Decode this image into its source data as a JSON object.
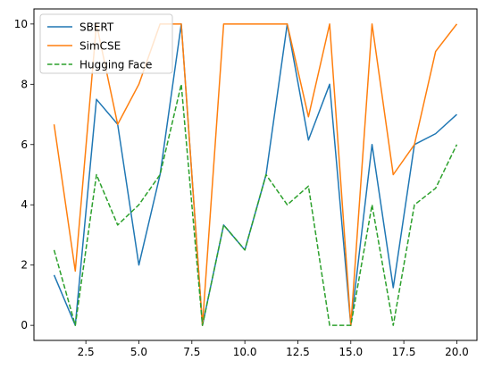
{
  "chart_data": {
    "type": "line",
    "x": [
      1,
      2,
      3,
      4,
      5,
      6,
      7,
      8,
      9,
      10,
      11,
      12,
      13,
      14,
      15,
      16,
      17,
      18,
      19,
      20
    ],
    "xlim": [
      0.05,
      20.95
    ],
    "ylim": [
      -0.5,
      10.5
    ],
    "xticks": [
      2.5,
      5.0,
      7.5,
      10.0,
      12.5,
      15.0,
      17.5,
      20.0
    ],
    "xtick_labels": [
      "2.5",
      "5.0",
      "7.5",
      "10.0",
      "12.5",
      "15.0",
      "17.5",
      "20.0"
    ],
    "yticks": [
      0,
      2,
      4,
      6,
      8,
      10
    ],
    "ytick_labels": [
      "0",
      "2",
      "4",
      "6",
      "8",
      "10"
    ],
    "grid": false,
    "legend_position": "top-left",
    "title": "",
    "xlabel": "",
    "ylabel": "",
    "series": [
      {
        "name": "SBERT",
        "color": "#1f77b4",
        "style": "solid",
        "values": [
          1.67,
          0.0,
          7.5,
          6.67,
          2.0,
          5.0,
          10.0,
          0.0,
          3.33,
          2.5,
          5.0,
          10.0,
          6.15,
          8.0,
          0.0,
          6.0,
          1.25,
          6.0,
          6.36,
          7.0
        ]
      },
      {
        "name": "SimCSE",
        "color": "#ff7f0e",
        "style": "solid",
        "values": [
          6.67,
          1.8,
          10.0,
          6.67,
          8.0,
          10.0,
          10.0,
          0.0,
          10.0,
          10.0,
          10.0,
          10.0,
          6.92,
          10.0,
          0.0,
          10.0,
          5.0,
          6.0,
          9.09,
          10.0
        ]
      },
      {
        "name": "Hugging Face",
        "color": "#2ca02c",
        "style": "dashed",
        "values": [
          2.5,
          0.0,
          5.0,
          3.33,
          4.0,
          5.0,
          8.0,
          0.0,
          3.33,
          2.5,
          5.0,
          4.0,
          4.62,
          0.0,
          0.0,
          4.0,
          0.0,
          4.0,
          4.55,
          6.0
        ]
      }
    ]
  }
}
